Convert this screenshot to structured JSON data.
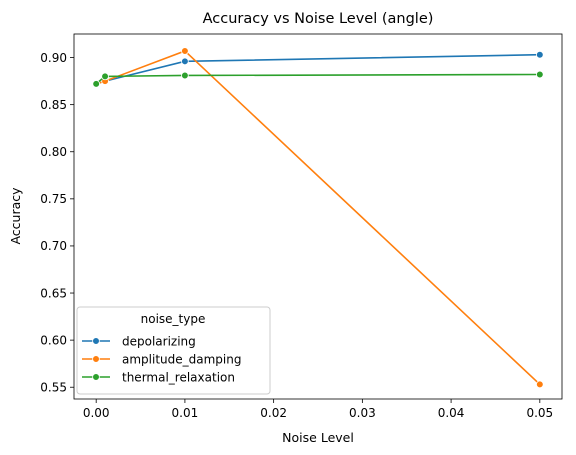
{
  "chart_data": {
    "type": "line",
    "title": "Accuracy vs Noise Level (angle)",
    "xlabel": "Noise Level",
    "ylabel": "Accuracy",
    "xlim": [
      -0.0025,
      0.0525
    ],
    "ylim": [
      0.5375,
      0.925
    ],
    "xticks": [
      0.0,
      0.01,
      0.02,
      0.03,
      0.04,
      0.05
    ],
    "xtick_labels": [
      "0.00",
      "0.01",
      "0.02",
      "0.03",
      "0.04",
      "0.05"
    ],
    "yticks": [
      0.55,
      0.6,
      0.65,
      0.7,
      0.75,
      0.8,
      0.85,
      0.9
    ],
    "ytick_labels": [
      "0.55",
      "0.60",
      "0.65",
      "0.70",
      "0.75",
      "0.80",
      "0.85",
      "0.90"
    ],
    "grid": false,
    "legend": {
      "title": "noise_type",
      "placement": "lower-left"
    },
    "series": [
      {
        "name": "depolarizing",
        "color": "#1f77b4",
        "x": [
          0.0,
          0.001,
          0.01,
          0.05
        ],
        "y": [
          0.872,
          0.875,
          0.896,
          0.903
        ]
      },
      {
        "name": "amplitude_damping",
        "color": "#ff7f0e",
        "x": [
          0.0,
          0.001,
          0.01,
          0.05
        ],
        "y": [
          0.872,
          0.875,
          0.907,
          0.553
        ]
      },
      {
        "name": "thermal_relaxation",
        "color": "#2ca02c",
        "x": [
          0.0,
          0.001,
          0.01,
          0.05
        ],
        "y": [
          0.872,
          0.88,
          0.881,
          0.882
        ]
      }
    ]
  }
}
